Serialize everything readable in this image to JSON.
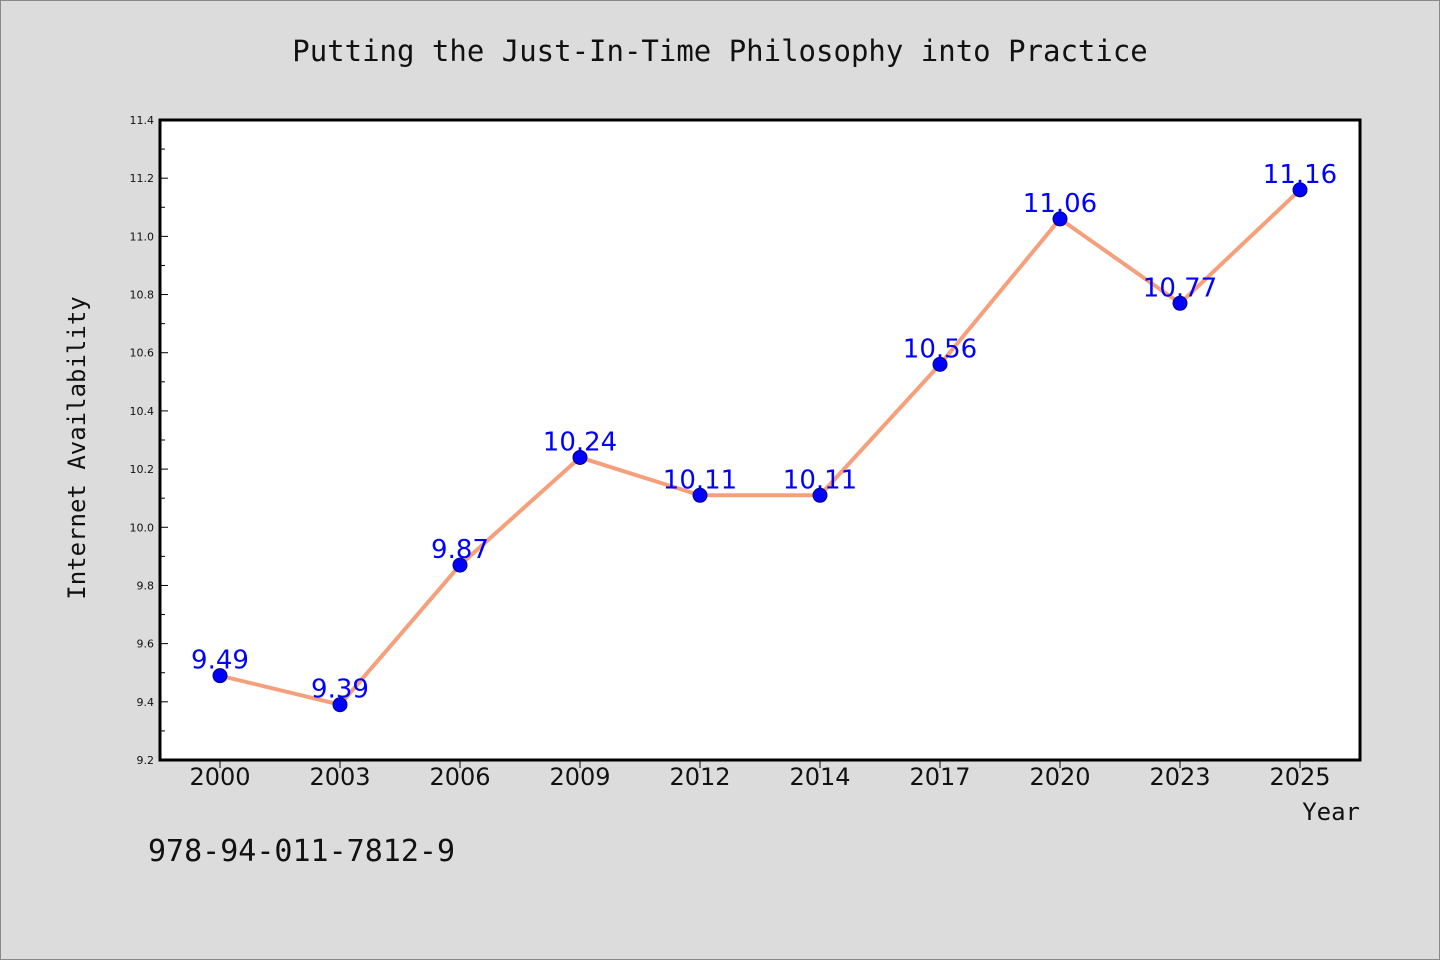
{
  "chart_data": {
    "type": "line",
    "title": "Putting the Just-In-Time Philosophy into Practice",
    "xlabel": "Year",
    "ylabel": "Internet Availability",
    "categories": [
      "2000",
      "2003",
      "2006",
      "2009",
      "2012",
      "2014",
      "2017",
      "2020",
      "2023",
      "2025"
    ],
    "series": [
      {
        "values": [
          9.49,
          9.39,
          9.87,
          10.24,
          10.11,
          10.11,
          10.56,
          11.06,
          10.77,
          11.16
        ]
      }
    ],
    "data_labels": [
      "9.49",
      "9.39",
      "9.87",
      "10.24",
      "10.11",
      "10.11",
      "10.56",
      "11.06",
      "10.77",
      "11.16"
    ],
    "ylim": [
      9.2,
      11.4
    ],
    "y_ticks": [
      "9.2",
      "9.4",
      "9.6",
      "9.8",
      "10.0",
      "10.2",
      "10.4",
      "10.6",
      "10.8",
      "11.0",
      "11.2",
      "11.4"
    ],
    "grid": false,
    "legend": "none",
    "colors": {
      "line": "#f5a07a",
      "marker": "#0000ff",
      "marker_edge": "#000080",
      "label": "#0000ff",
      "background": "#dcdcdc",
      "plot_background": "#ffffff"
    }
  },
  "footer": {
    "isbn": "978-94-011-7812-9"
  }
}
